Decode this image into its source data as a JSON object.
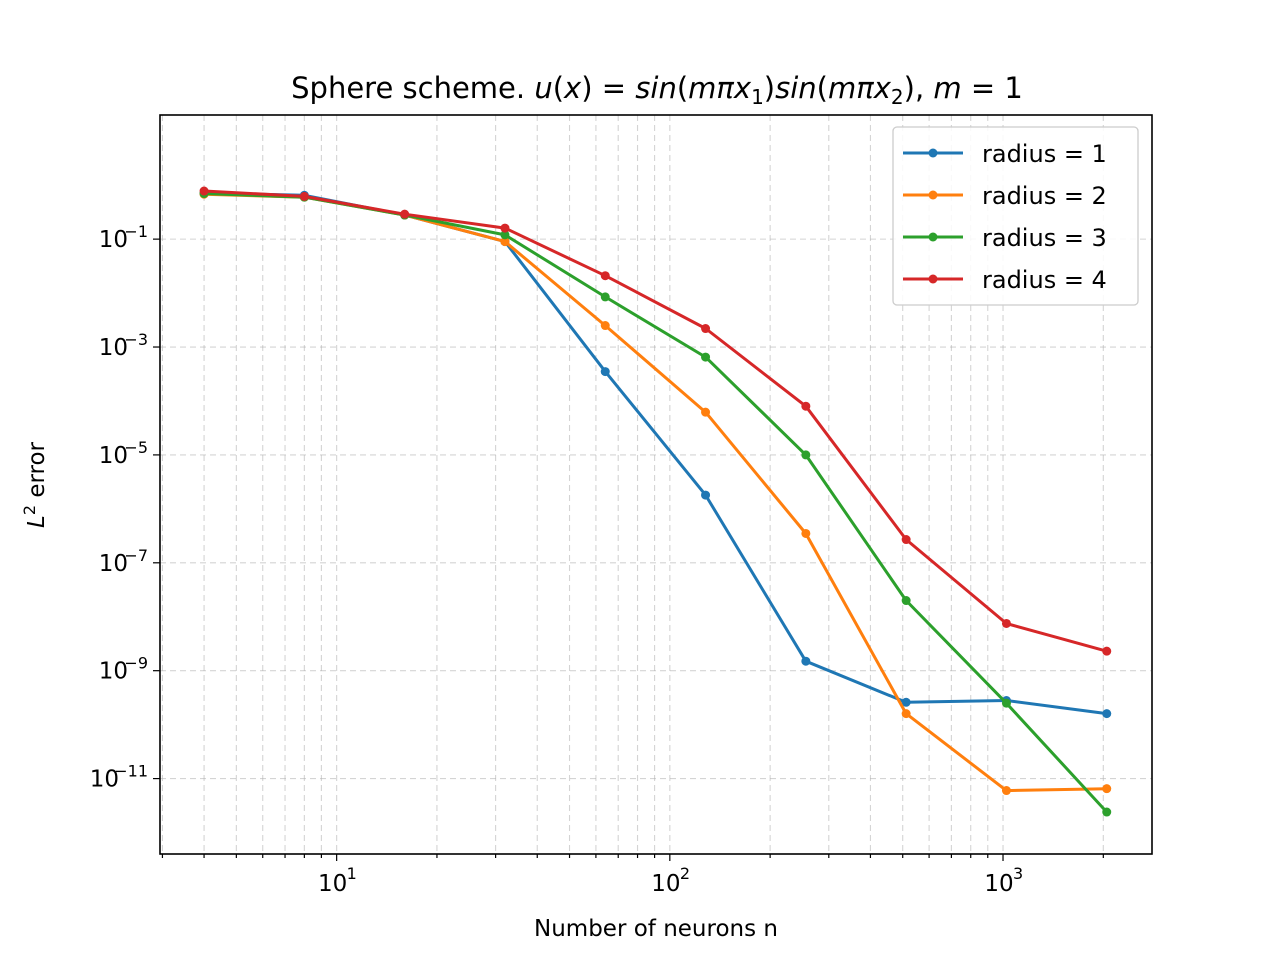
{
  "chart_data": {
    "type": "line",
    "title": "Sphere scheme. u(x) = sin(mπx₁)sin(mπx₂), m = 1",
    "title_parts": {
      "prefix": "Sphere scheme. ",
      "u": "u",
      "x": "x",
      "eq": " = ",
      "sin": "sin",
      "m": "m",
      "pi": "π",
      "sub1": "1",
      "sub2": "2",
      "comma": ", ",
      "m_val": "1"
    },
    "xlabel": "Number of neurons n",
    "ylabel": "L² error",
    "ylabel_parts": {
      "base": "L",
      "sup": "2",
      "rest": " error"
    },
    "xscale": "log",
    "yscale": "log",
    "xlim": [
      2.95,
      2800
    ],
    "ylim": [
      4e-13,
      20.0
    ],
    "x_major_ticks": [
      {
        "value": 10,
        "base": "10",
        "exp": "1"
      },
      {
        "value": 100,
        "base": "10",
        "exp": "2"
      },
      {
        "value": 1000,
        "base": "10",
        "exp": "3"
      }
    ],
    "y_major_ticks": [
      {
        "value": 1e-11,
        "base": "10",
        "exp": "−11"
      },
      {
        "value": 1e-09,
        "base": "10",
        "exp": "−9"
      },
      {
        "value": 1e-07,
        "base": "10",
        "exp": "−7"
      },
      {
        "value": 1e-05,
        "base": "10",
        "exp": "−5"
      },
      {
        "value": 0.001,
        "base": "10",
        "exp": "−3"
      },
      {
        "value": 0.1,
        "base": "10",
        "exp": "−1"
      }
    ],
    "grid": true,
    "legend_position": "top-right",
    "x": [
      4,
      8,
      16,
      32,
      64,
      128,
      256,
      512,
      1024,
      2048
    ],
    "series": [
      {
        "name": "radius = 1",
        "color": "#1f77b4",
        "values": [
          0.72,
          0.65,
          0.28,
          0.09,
          0.00035,
          1.8e-06,
          1.5e-09,
          2.6e-10,
          2.8e-10,
          1.6e-10
        ]
      },
      {
        "name": "radius = 2",
        "color": "#ff7f0e",
        "values": [
          0.68,
          0.6,
          0.28,
          0.09,
          0.0025,
          6.2e-05,
          3.5e-07,
          1.6e-10,
          6e-12,
          6.5e-12
        ]
      },
      {
        "name": "radius = 3",
        "color": "#2ca02c",
        "values": [
          0.7,
          0.6,
          0.28,
          0.12,
          0.0085,
          0.00065,
          1e-05,
          2e-08,
          2.5e-10,
          2.4e-12
        ]
      },
      {
        "name": "radius = 4",
        "color": "#d62728",
        "values": [
          0.78,
          0.62,
          0.29,
          0.16,
          0.021,
          0.0022,
          8e-05,
          2.7e-07,
          7.5e-09,
          2.3e-09
        ]
      }
    ]
  }
}
